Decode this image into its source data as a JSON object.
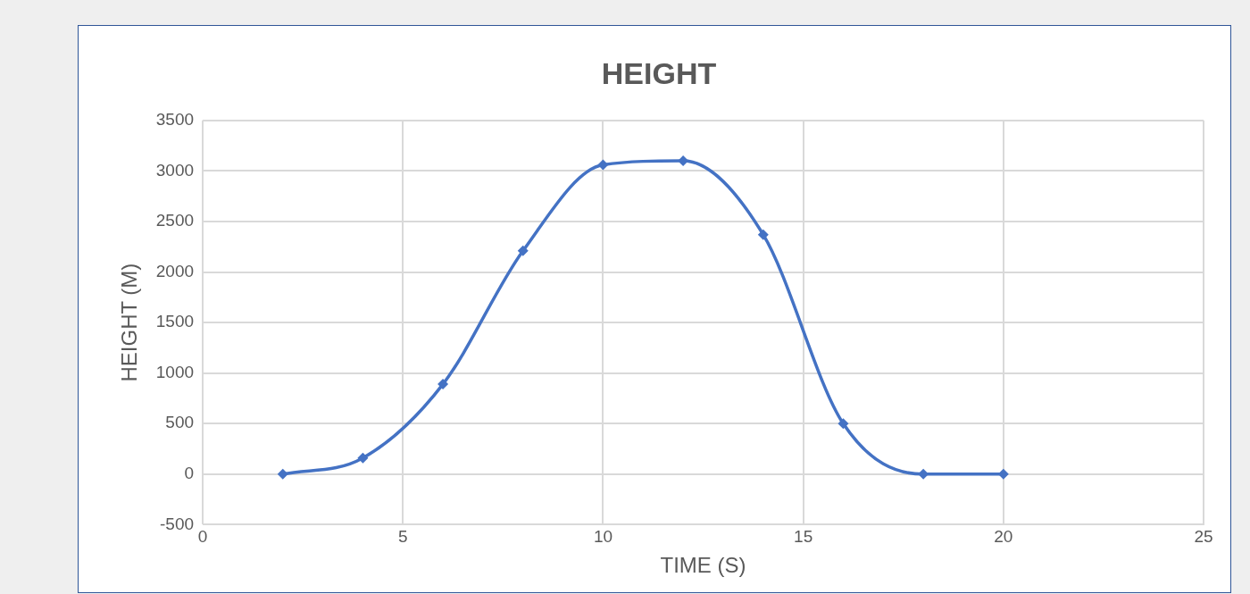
{
  "chart_data": {
    "type": "line",
    "title": "HEIGHT",
    "xlabel": "TIME (S)",
    "ylabel": "HEIGHT (M)",
    "x": [
      2,
      4,
      6,
      8,
      10,
      12,
      14,
      16,
      18,
      20
    ],
    "series": [
      {
        "color": "#4472c4",
        "values": [
          0,
          160,
          890,
          2210,
          3060,
          3100,
          2370,
          500,
          0,
          0
        ]
      }
    ],
    "xlim": [
      0,
      25
    ],
    "xticks": [
      0,
      5,
      10,
      15,
      20,
      25
    ],
    "ylim": [
      -500,
      3500
    ],
    "yticks": [
      -500,
      0,
      500,
      1000,
      1500,
      2000,
      2500,
      3000,
      3500
    ],
    "grid": true,
    "legend": false,
    "marker": "diamond",
    "line_style": "solid"
  }
}
